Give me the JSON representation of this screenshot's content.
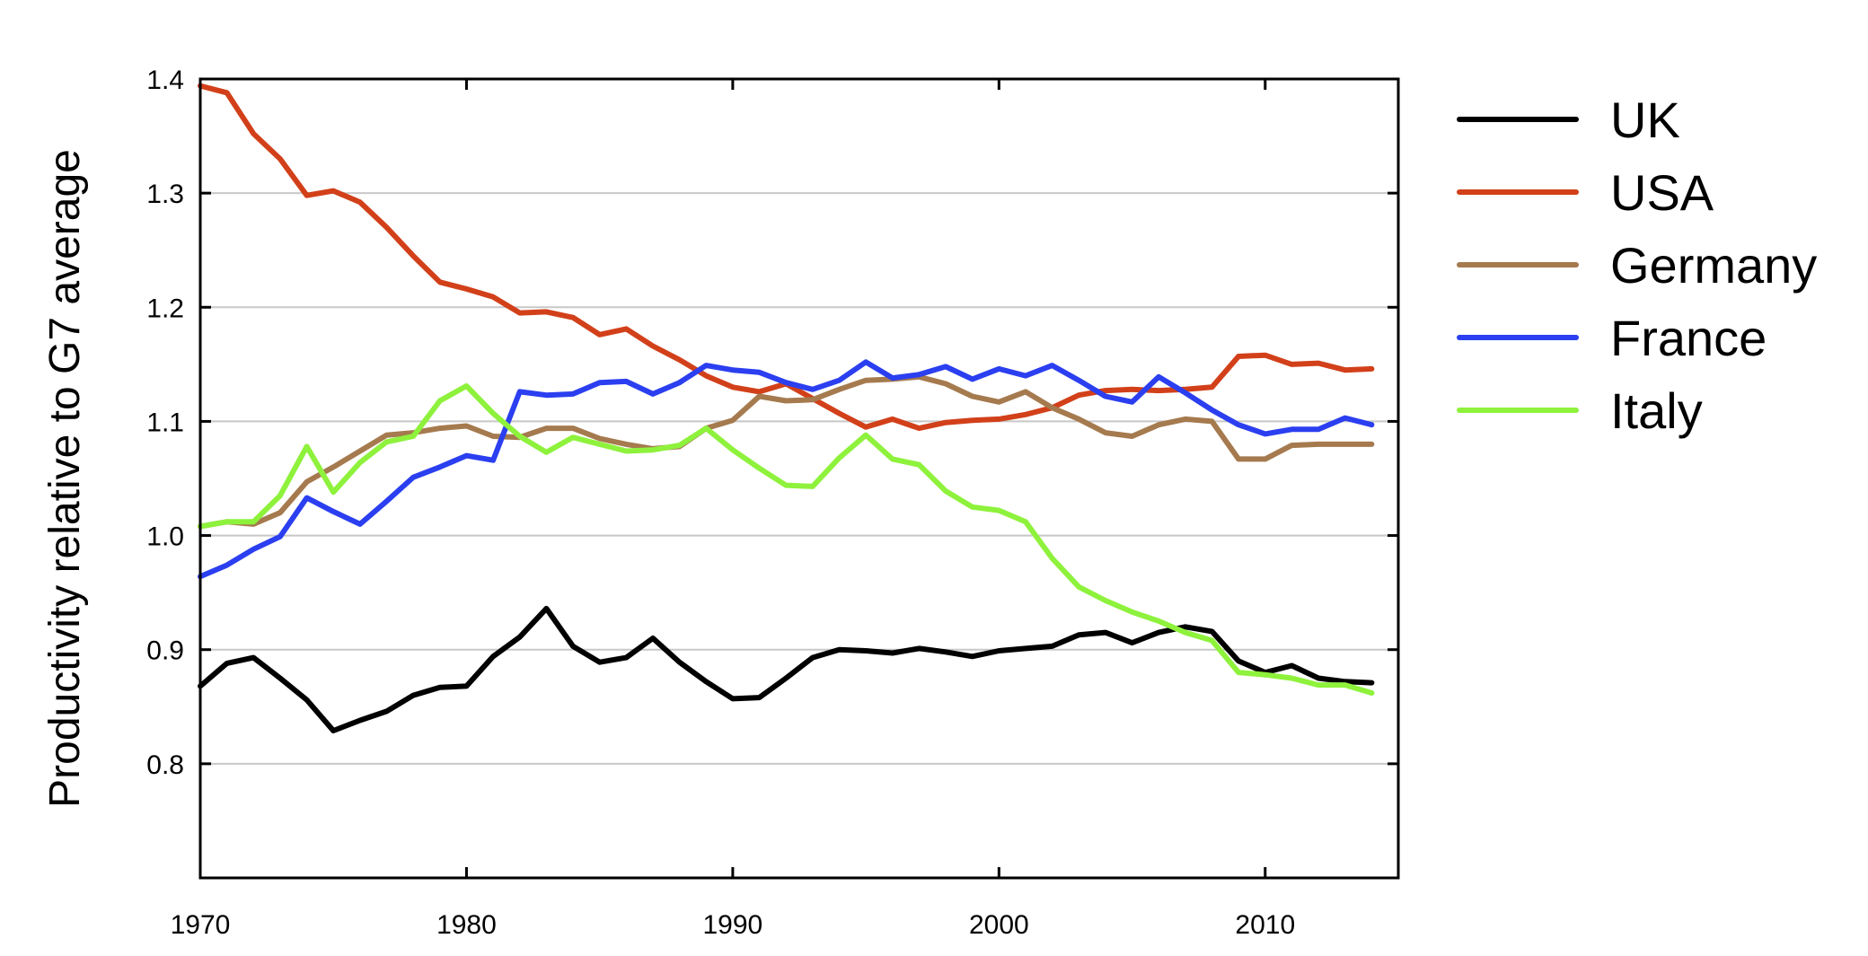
{
  "chart_data": {
    "type": "line",
    "title": "",
    "xlabel": "",
    "ylabel": "Productivity relative to G7 average",
    "xlim": [
      1970,
      2015
    ],
    "ylim": [
      0.7,
      1.4
    ],
    "xticks": [
      1970,
      1980,
      1990,
      2000,
      2010
    ],
    "yticks": [
      0.8,
      0.9,
      1.0,
      1.1,
      1.2,
      1.3,
      1.4
    ],
    "ytick_labels": [
      "0.8",
      "0.9",
      "1.0",
      "1.1",
      "1.2",
      "1.3",
      "1.4"
    ],
    "grid": "horizontal",
    "legend_position": "right",
    "x": [
      1970,
      1971,
      1972,
      1973,
      1974,
      1975,
      1976,
      1977,
      1978,
      1979,
      1980,
      1981,
      1982,
      1983,
      1984,
      1985,
      1986,
      1987,
      1988,
      1989,
      1990,
      1991,
      1992,
      1993,
      1994,
      1995,
      1996,
      1997,
      1998,
      1999,
      2000,
      2001,
      2002,
      2003,
      2004,
      2005,
      2006,
      2007,
      2008,
      2009,
      2010,
      2011,
      2012,
      2013,
      2014
    ],
    "series": [
      {
        "name": "UK",
        "color": "#000000",
        "values": [
          0.868,
          0.888,
          0.893,
          0.875,
          0.856,
          0.829,
          0.838,
          0.846,
          0.86,
          0.867,
          0.868,
          0.894,
          0.911,
          0.936,
          0.903,
          0.889,
          0.893,
          0.91,
          0.889,
          0.872,
          0.857,
          0.858,
          0.875,
          0.893,
          0.9,
          0.899,
          0.897,
          0.901,
          0.898,
          0.894,
          0.899,
          0.901,
          0.903,
          0.913,
          0.915,
          0.906,
          0.915,
          0.92,
          0.916,
          0.89,
          0.88,
          0.886,
          0.875,
          0.872,
          0.871
        ]
      },
      {
        "name": "USA",
        "color": "#d2401a",
        "values": [
          1.394,
          1.388,
          1.352,
          1.33,
          1.298,
          1.302,
          1.292,
          1.27,
          1.245,
          1.222,
          1.216,
          1.209,
          1.195,
          1.196,
          1.191,
          1.176,
          1.181,
          1.166,
          1.154,
          1.14,
          1.13,
          1.126,
          1.133,
          1.12,
          1.107,
          1.095,
          1.102,
          1.094,
          1.099,
          1.101,
          1.102,
          1.106,
          1.112,
          1.123,
          1.127,
          1.128,
          1.127,
          1.128,
          1.13,
          1.157,
          1.158,
          1.15,
          1.151,
          1.145,
          1.146
        ]
      },
      {
        "name": "Germany",
        "color": "#a57a4e",
        "values": [
          1.008,
          1.012,
          1.01,
          1.02,
          1.047,
          1.06,
          1.074,
          1.088,
          1.09,
          1.094,
          1.096,
          1.087,
          1.086,
          1.094,
          1.094,
          1.085,
          1.08,
          1.076,
          1.078,
          1.094,
          1.101,
          1.122,
          1.118,
          1.119,
          1.128,
          1.136,
          1.137,
          1.139,
          1.133,
          1.122,
          1.117,
          1.126,
          1.112,
          1.102,
          1.09,
          1.087,
          1.097,
          1.102,
          1.1,
          1.067,
          1.067,
          1.079,
          1.08,
          1.08,
          1.08
        ]
      },
      {
        "name": "France",
        "color": "#2b3ff0",
        "values": [
          0.964,
          0.974,
          0.988,
          0.999,
          1.033,
          1.021,
          1.01,
          1.03,
          1.051,
          1.06,
          1.07,
          1.066,
          1.126,
          1.123,
          1.124,
          1.134,
          1.135,
          1.124,
          1.134,
          1.149,
          1.145,
          1.143,
          1.134,
          1.128,
          1.136,
          1.152,
          1.138,
          1.141,
          1.148,
          1.137,
          1.146,
          1.14,
          1.149,
          1.136,
          1.122,
          1.117,
          1.139,
          1.125,
          1.11,
          1.097,
          1.089,
          1.093,
          1.093,
          1.103,
          1.097
        ]
      },
      {
        "name": "Italy",
        "color": "#8ef23c",
        "values": [
          1.008,
          1.012,
          1.012,
          1.035,
          1.078,
          1.038,
          1.064,
          1.082,
          1.087,
          1.118,
          1.131,
          1.107,
          1.087,
          1.073,
          1.086,
          1.08,
          1.074,
          1.075,
          1.079,
          1.094,
          1.075,
          1.059,
          1.044,
          1.043,
          1.068,
          1.088,
          1.067,
          1.062,
          1.039,
          1.025,
          1.022,
          1.012,
          0.98,
          0.955,
          0.943,
          0.933,
          0.925,
          0.915,
          0.908,
          0.88,
          0.878,
          0.875,
          0.869,
          0.869,
          0.862
        ]
      }
    ]
  }
}
